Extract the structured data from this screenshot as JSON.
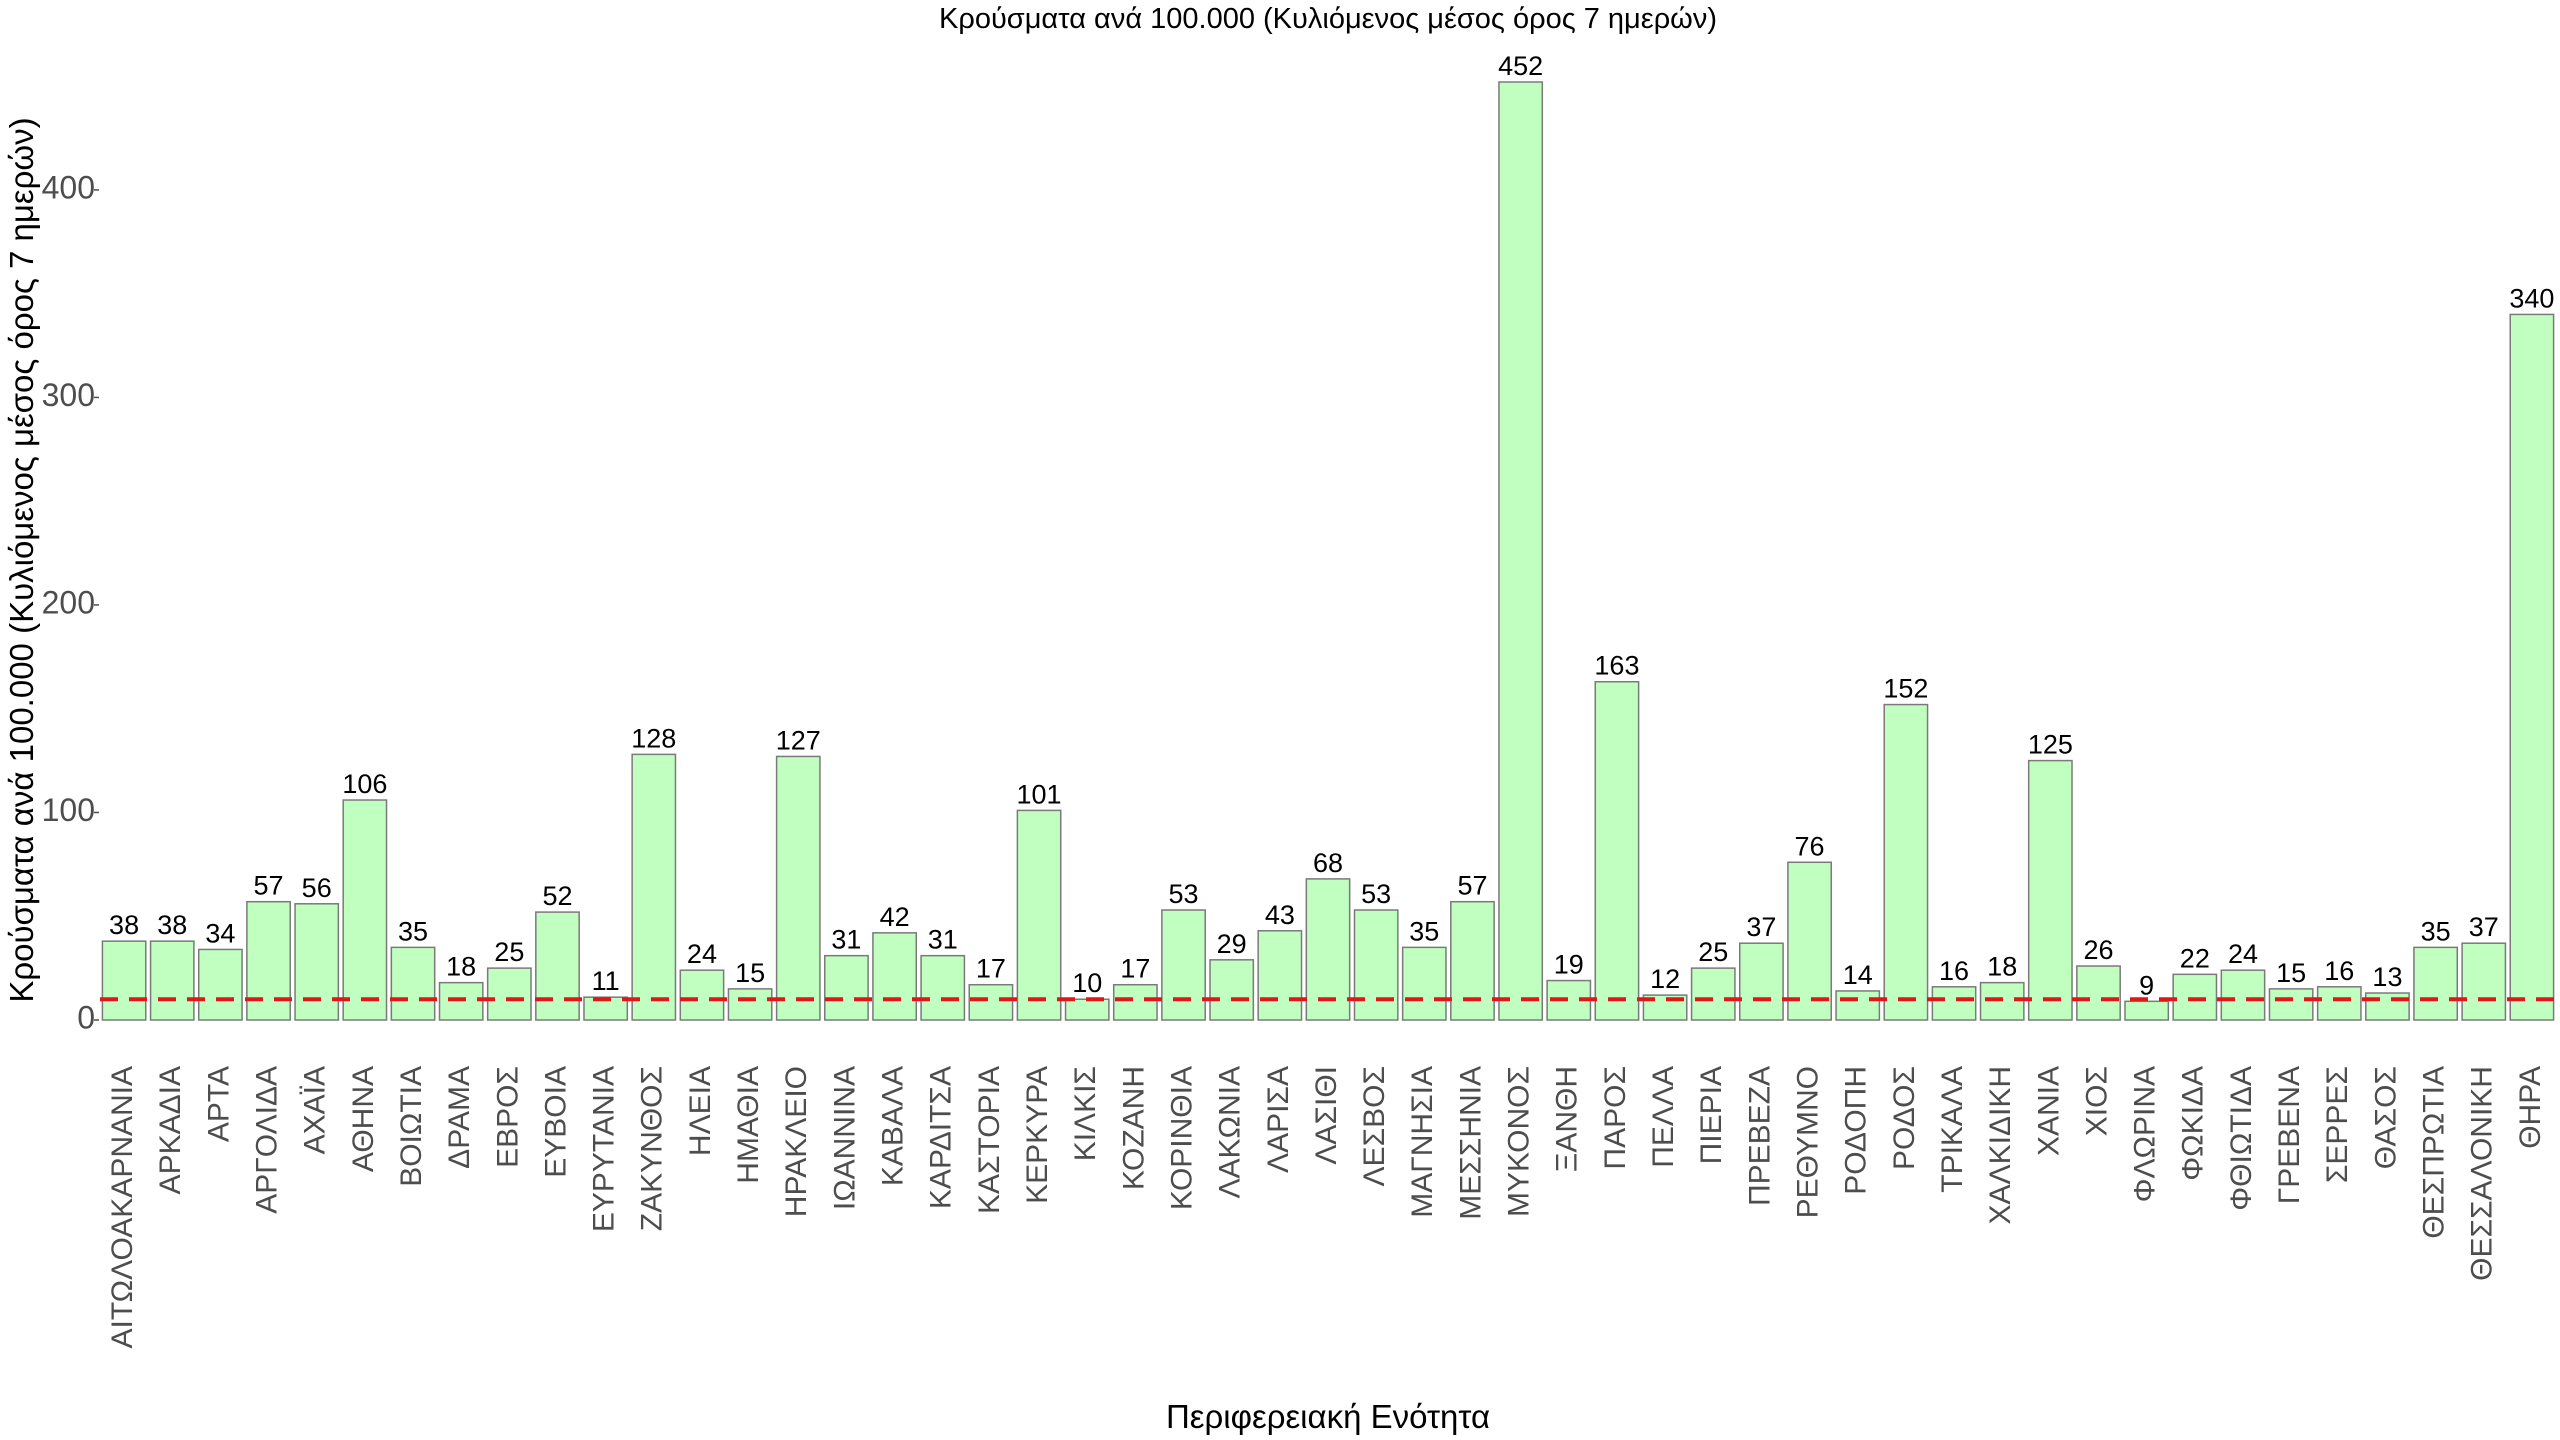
{
  "chart_data": {
    "type": "bar",
    "title": "Κρούσματα ανά 100.000 (Κυλιόμενος μέσος όρος 7 ημερών)",
    "xlabel": "Περιφερειακή Ενότητα",
    "ylabel": "Κρούσματα ανά 100.000 (Κυλιόμενος μέσος όρος 7 ημερών)",
    "ylim": [
      0,
      452
    ],
    "yticks": [
      0,
      100,
      200,
      300,
      400
    ],
    "grid": false,
    "legend": "none",
    "bar_color": "#c0ffc0",
    "bar_outline_color": "#7a7a7a",
    "reference_line": {
      "value": 10,
      "style": "dashed",
      "color": "#e0161b"
    },
    "categories": [
      "ΑΙΤΩΛΟΑΚΑΡΝΑΝΙΑ",
      "ΑΡΚΑΔΙΑ",
      "ΑΡΤΑ",
      "ΑΡΓΟΛΙΔΑ",
      "ΑΧΑΪΑ",
      "ΑΘΗΝΑ",
      "ΒΟΙΩΤΙΑ",
      "ΔΡΑΜΑ",
      "ΕΒΡΟΣ",
      "ΕΥΒΟΙΑ",
      "ΕΥΡΥΤΑΝΙΑ",
      "ΖΑΚΥΝΘΟΣ",
      "ΗΛΕΙΑ",
      "ΗΜΑΘΙΑ",
      "ΗΡΑΚΛΕΙΟ",
      "ΙΩΑΝΝΙΝΑ",
      "ΚΑΒΑΛΑ",
      "ΚΑΡΔΙΤΣΑ",
      "ΚΑΣΤΟΡΙΑ",
      "ΚΕΡΚΥΡΑ",
      "ΚΙΛΚΙΣ",
      "ΚΟΖΑΝΗ",
      "ΚΟΡΙΝΘΙΑ",
      "ΛΑΚΩΝΙΑ",
      "ΛΑΡΙΣΑ",
      "ΛΑΣΙΘΙ",
      "ΛΕΣΒΟΣ",
      "ΜΑΓΝΗΣΙΑ",
      "ΜΕΣΣΗΝΙΑ",
      "ΜΥΚΟΝΟΣ",
      "ΞΑΝΘΗ",
      "ΠΑΡΟΣ",
      "ΠΕΛΛΑ",
      "ΠΙΕΡΙΑ",
      "ΠΡΕΒΕΖΑ",
      "ΡΕΘΥΜΝΟ",
      "ΡΟΔΟΠΗ",
      "ΡΟΔΟΣ",
      "ΤΡΙΚΑΛΑ",
      "ΧΑΛΚΙΔΙΚΗ",
      "ΧΑΝΙΑ",
      "ΧΙΟΣ",
      "ΦΛΩΡΙΝΑ",
      "ΦΩΚΙΔΑ",
      "ΦΘΙΩΤΙΔΑ",
      "ΓΡΕΒΕΝΑ",
      "ΣΕΡΡΕΣ",
      "ΘΑΣΟΣ",
      "ΘΕΣΠΡΩΤΙΑ",
      "ΘΕΣΣΑΛΟΝΙΚΗ",
      "ΘΗΡΑ"
    ],
    "values": [
      38,
      38,
      34,
      57,
      56,
      106,
      35,
      18,
      25,
      52,
      11,
      128,
      24,
      15,
      127,
      31,
      42,
      31,
      17,
      101,
      10,
      17,
      53,
      29,
      43,
      68,
      53,
      35,
      57,
      452,
      19,
      163,
      12,
      25,
      37,
      76,
      14,
      152,
      16,
      18,
      125,
      26,
      9,
      22,
      24,
      15,
      16,
      13,
      35,
      37,
      340
    ]
  }
}
